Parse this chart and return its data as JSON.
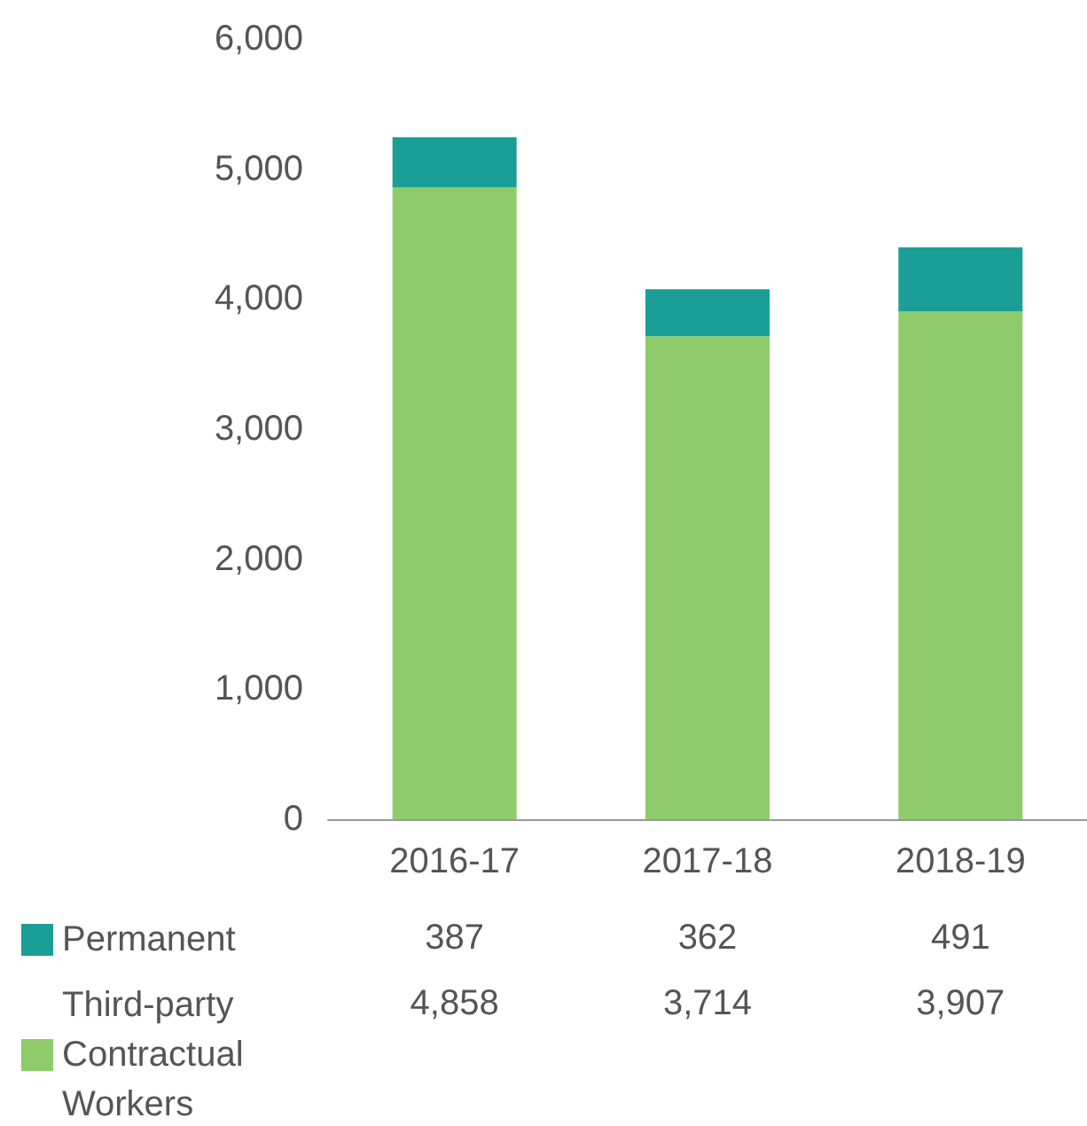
{
  "chart_data": {
    "type": "bar",
    "stacked": true,
    "categories": [
      "2016-17",
      "2017-18",
      "2018-19"
    ],
    "series": [
      {
        "name": "Third-party Contractual Workers",
        "color": "#8fcb6a",
        "values": [
          4858,
          3714,
          3907
        ],
        "value_labels": [
          "4,858",
          "3,714",
          "3,907"
        ]
      },
      {
        "name": "Permanent",
        "color": "#1a9e96",
        "values": [
          387,
          362,
          491
        ],
        "value_labels": [
          "387",
          "362",
          "491"
        ]
      }
    ],
    "ylim": [
      0,
      6000
    ],
    "yticks": [
      {
        "value": 0,
        "label": "0"
      },
      {
        "value": 1000,
        "label": "1,000"
      },
      {
        "value": 2000,
        "label": "2,000"
      },
      {
        "value": 3000,
        "label": "3,000"
      },
      {
        "value": 4000,
        "label": "4,000"
      },
      {
        "value": 5000,
        "label": "5,000"
      },
      {
        "value": 6000,
        "label": "6,000"
      }
    ],
    "grid": false,
    "legend": "bottom"
  }
}
